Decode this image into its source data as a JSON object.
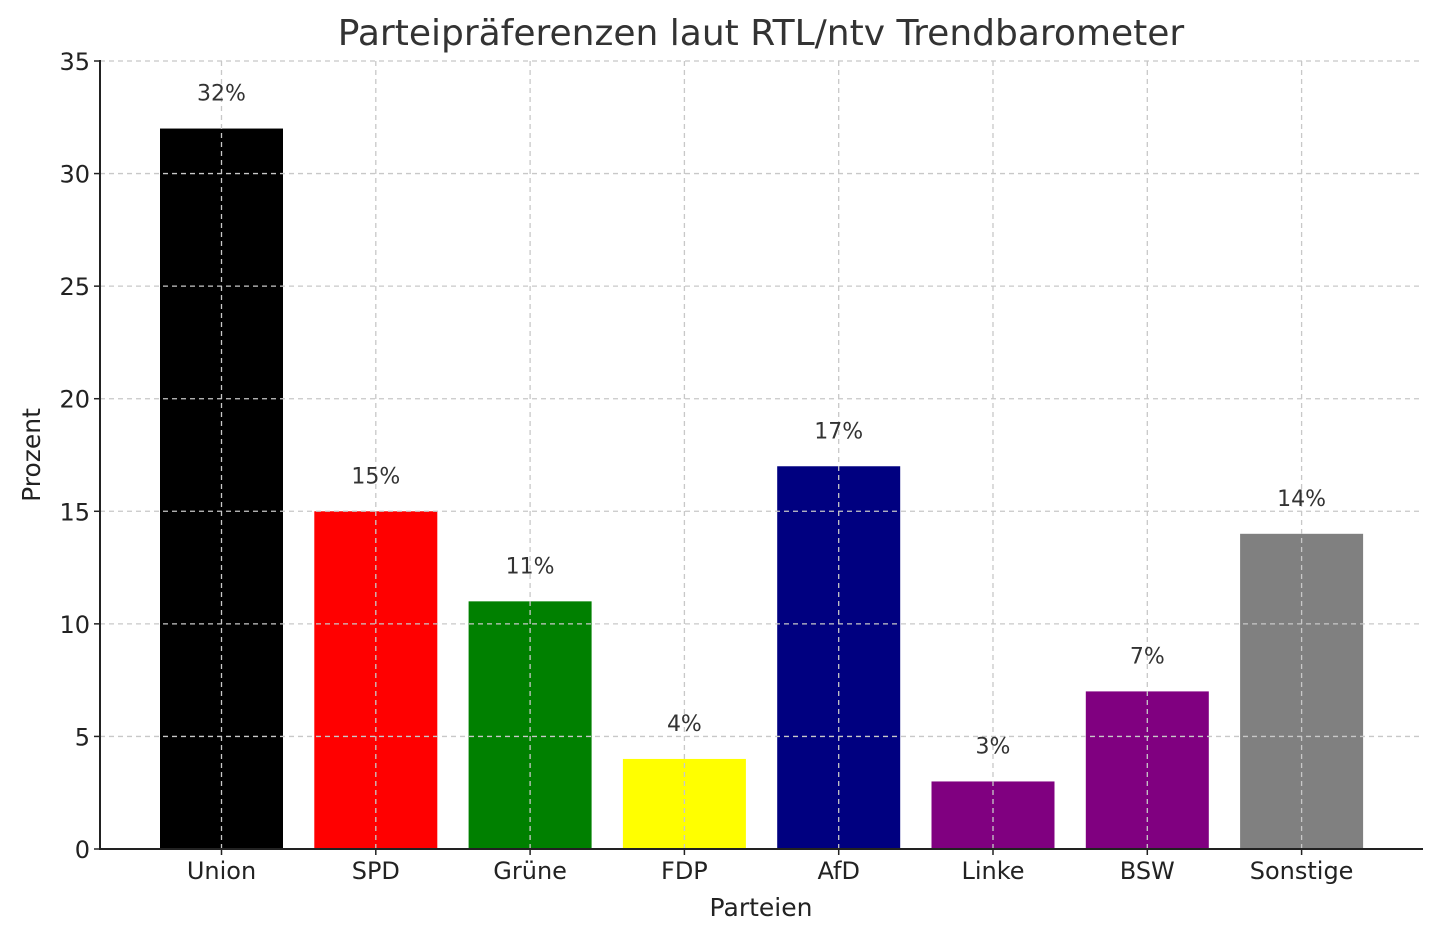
{
  "chart_data": {
    "type": "bar",
    "title": "Parteipräferenzen laut RTL/ntv Trendbarometer",
    "xlabel": "Parteien",
    "ylabel": "Prozent",
    "categories": [
      "Union",
      "SPD",
      "Grüne",
      "FDP",
      "AfD",
      "Linke",
      "BSW",
      "Sonstige"
    ],
    "values": [
      32,
      15,
      11,
      4,
      17,
      3,
      7,
      14
    ],
    "value_labels": [
      "32%",
      "15%",
      "11%",
      "4%",
      "17%",
      "3%",
      "7%",
      "14%"
    ],
    "colors": [
      "#000000",
      "#ff0000",
      "#008000",
      "#ffff00",
      "#000080",
      "#800080",
      "#800080",
      "#808080"
    ],
    "ylim": [
      0,
      35
    ],
    "yticks": [
      0,
      5,
      10,
      15,
      20,
      25,
      30,
      35
    ],
    "grid": true,
    "legend": null
  }
}
